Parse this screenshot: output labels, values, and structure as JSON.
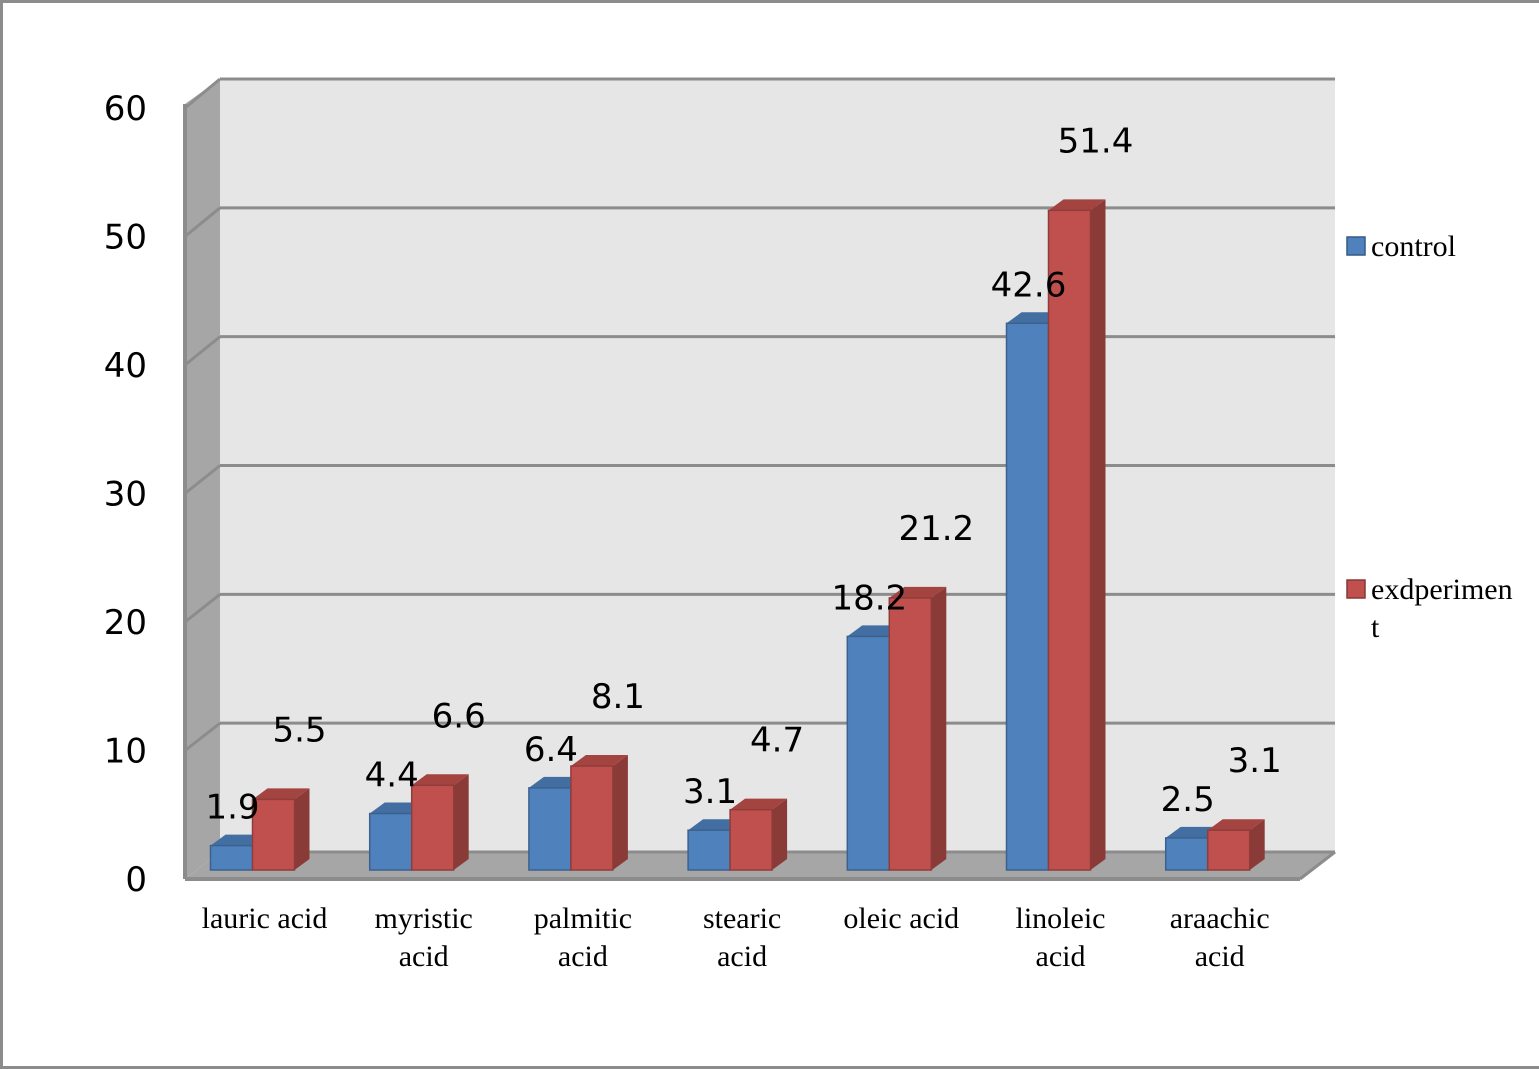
{
  "chart_data": {
    "type": "bar",
    "title": "",
    "xlabel": "",
    "ylabel": "",
    "ylim": [
      0,
      60
    ],
    "yticks": [
      "0",
      "10",
      "20",
      "30",
      "40",
      "50",
      "60"
    ],
    "grid": true,
    "legend_position": "right",
    "categories": [
      [
        "lauric acid"
      ],
      [
        "myristic",
        "acid"
      ],
      [
        "palmitic",
        "acid"
      ],
      [
        "stearic",
        "acid"
      ],
      [
        "oleic acid"
      ],
      [
        "linoleic",
        "acid"
      ],
      [
        "araachic",
        "acid"
      ]
    ],
    "series": [
      {
        "name": "control",
        "legend_lines": [
          "control"
        ],
        "color": "#4f81bd",
        "values": [
          1.9,
          4.4,
          6.4,
          3.1,
          18.2,
          42.6,
          2.5
        ],
        "labels": [
          "1.9",
          "4.4",
          "6.4",
          "3.1",
          "18.2",
          "42.6",
          "2.5"
        ]
      },
      {
        "name": "exdperiment",
        "legend_lines": [
          "exdperimen",
          "t"
        ],
        "color": "#c0504d",
        "values": [
          5.5,
          6.6,
          8.1,
          4.7,
          21.2,
          51.4,
          3.1
        ],
        "labels": [
          "5.5",
          "6.6",
          "8.1",
          "4.7",
          "21.2",
          "51.4",
          "3.1"
        ]
      }
    ]
  }
}
